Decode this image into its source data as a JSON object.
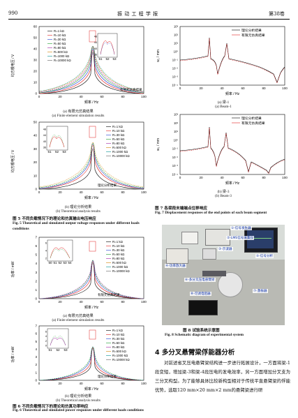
{
  "header": {
    "page_number": "990",
    "journal": "振  动  工  程  学  报",
    "volume": "第38卷"
  },
  "legend_r": [
    "R=1 kΩ",
    "R=10 kΩ",
    "R=30 kΩ",
    "R=50 kΩ",
    "R=80 kΩ",
    "R=500 kΩ",
    "R=1000 kΩ",
    "R=10000 kΩ"
  ],
  "colors": {
    "series": [
      "#000000",
      "#e02020",
      "#1f3fd0",
      "#1a9a2a",
      "#a020a0",
      "#d08000",
      "#009090",
      "#606060"
    ],
    "theory": "#000000",
    "sim": "#e02020",
    "photo_label": "#0b2fa8"
  },
  "fig5": {
    "caption_zh": "图 5    不同负载情况下的理论和仿真输出电压响应",
    "caption_en": "Fig. 5    Theoretical and simulated output voltage responses under different loads conditions",
    "a": {
      "sub": "(a) 有限元仿真结果",
      "sub_en": "(a) Finite element simulation results",
      "ylabel": "均方根电压 / V",
      "xlabel": "频率 / Hz",
      "xticks": [
        "0",
        "20",
        "40",
        "60",
        "80",
        "100"
      ],
      "yticks": [
        "0",
        "10",
        "20",
        "30",
        "40",
        "50",
        "60"
      ],
      "inset_xticks": [
        "51",
        "52",
        "53"
      ],
      "inset_yticks": [
        "36",
        "40",
        "44",
        "48"
      ],
      "tag": "有限元仿真结果"
    },
    "b": {
      "sub": "(b) 理论分析结果",
      "sub_en": "(b) Theoretical analysis results",
      "ylabel": "均方根电压 / V",
      "xlabel": "频率 / Hz",
      "xticks": [
        "0",
        "20",
        "40",
        "60",
        "80",
        "100"
      ],
      "yticks": [
        "0",
        "10",
        "20",
        "30",
        "40",
        "50"
      ],
      "inset_xticks": [
        "51",
        "52",
        "53"
      ],
      "inset_yticks": [
        "36",
        "40",
        "44",
        "48"
      ],
      "tag": "理论分析结果"
    }
  },
  "fig6": {
    "caption_zh": "图 6    不同负载情况下的理论和仿真功率响应",
    "caption_en": "Fig. 6    Theoretical and simulated power responses under different loads conditions",
    "a": {
      "sub": "(a) 有限元仿真结果",
      "sub_en": "(a) Finite element simulation results",
      "ylabel": "功率 / mW",
      "xlabel": "频率 / Hz",
      "xticks": [
        "0",
        "20",
        "40",
        "60",
        "80",
        "100"
      ],
      "yticks": [
        "0",
        "1",
        "2",
        "3",
        "4",
        "5",
        "6",
        "7"
      ],
      "inset_xticks": [
        "50",
        "51",
        "52",
        "53",
        "54"
      ],
      "inset_yticks": [
        "2",
        "4",
        "6"
      ],
      "tag": "有限元仿真结果"
    },
    "b": {
      "sub": "(b) 理论分析结果",
      "sub_en": "(b) Theoretical analysis results",
      "ylabel": "功率 / mW",
      "xlabel": "频率 / Hz",
      "xticks": [
        "0",
        "20",
        "40",
        "60",
        "80",
        "100"
      ],
      "yticks": [
        "0",
        "1",
        "2",
        "3",
        "4",
        "5",
        "6",
        "7"
      ],
      "inset_xticks": [
        "51",
        "52",
        "53"
      ],
      "inset_yticks": [
        "0",
        "2",
        "4",
        "6"
      ],
      "tag": "理论分析结果"
    }
  },
  "fig7": {
    "caption_zh": "图 7    各梁段末端端点位移响应",
    "caption_en": "Fig. 7    Displacement responses of the end points of each beam segment",
    "legend": [
      "理论分析结果",
      "有限元仿真结果"
    ],
    "a": {
      "sub": "(a) 梁-1",
      "sub_en": "(a) Beam-1",
      "ylabel": "w₁ / mm",
      "xlabel": "频率 / Hz",
      "xticks": [
        "0",
        "20",
        "40",
        "60",
        "80",
        "100"
      ],
      "yticks": [
        "10⁻⁴",
        "10⁻³",
        "10⁻²",
        "10⁻¹",
        "10⁰",
        "10¹",
        "10²",
        "10³"
      ]
    },
    "b": {
      "sub": "(b) 梁-3",
      "sub_en": "(b) Beam-3",
      "ylabel": "w₃ / mm",
      "xlabel": "频率 / Hz",
      "xticks": [
        "0",
        "20",
        "40",
        "60",
        "80",
        "100"
      ],
      "yticks": [
        "10⁻⁴",
        "10⁻³",
        "10⁻²",
        "10⁻¹",
        "10⁰",
        "10¹",
        "10²",
        "10³"
      ]
    }
  },
  "fig8": {
    "caption_zh": "图 8    试验系统示意图",
    "caption_en": "Fig. 8    Schematic diagram of experimental system",
    "labels": [
      "①-信号发生器",
      "②-LMS信号采集仪",
      "③-示波器",
      "④-功率放大器",
      "⑤-信号分析",
      "⑥-多分叉压电悬臂梁",
      "⑦-激振器",
      "⑧-可调电阻器"
    ]
  },
  "section4": {
    "title": "4    多分叉悬臂梁俘能器分析",
    "text": "对前述省叉压电悬臂梁结构进一步进行拓展设计，一方面将梁-1段变短，增加梁-3和梁-4段压电的发电效率，另一方面增加分叉支为三分叉构型。为了能够具体比较新构型相对于传统平直悬臂梁的俘能优势，选取120 mm×20 mm×2 mm的悬臂梁进行研"
  }
}
